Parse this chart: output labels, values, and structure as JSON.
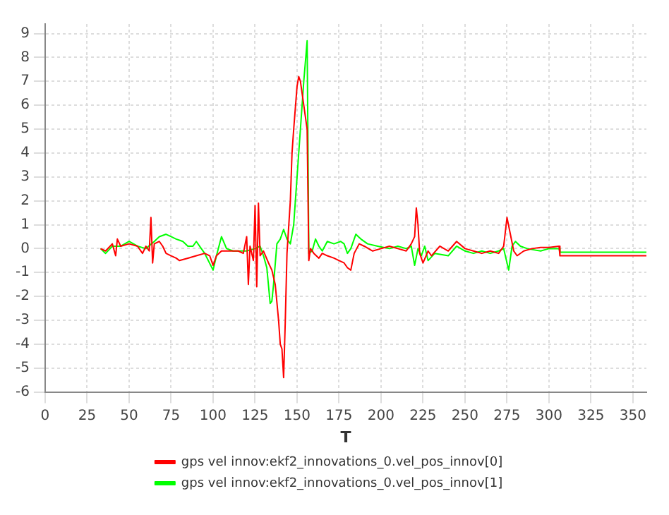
{
  "chart_data": {
    "type": "line",
    "xlabel": "T",
    "xlim": [
      0,
      358
    ],
    "xticks": [
      0,
      25,
      50,
      75,
      100,
      125,
      150,
      175,
      200,
      225,
      250,
      275,
      300,
      325,
      350
    ],
    "ylim": [
      -6,
      9.4
    ],
    "yticks": [
      -6,
      -5,
      -4,
      -3,
      -2,
      -1,
      0,
      1,
      2,
      3,
      4,
      5,
      6,
      7,
      8,
      9
    ],
    "grid": true,
    "legend": "bottom",
    "marker": "none",
    "line_style": "solid",
    "series": [
      {
        "name": "gps vel innov:ekf2_innovations_0.vel_pos_innov[0]",
        "color": "#ff0000",
        "x": [
          33,
          36,
          40,
          42,
          43,
          45,
          50,
          55,
          58,
          60,
          62,
          63,
          64,
          65,
          68,
          70,
          72,
          75,
          78,
          80,
          85,
          90,
          95,
          98,
          100,
          102,
          105,
          110,
          115,
          118,
          120,
          121,
          122,
          124,
          125,
          126,
          127,
          128,
          130,
          133,
          135,
          137,
          139,
          140,
          141,
          142,
          143,
          144,
          146,
          147,
          148,
          150,
          151,
          152,
          154,
          156,
          157,
          158,
          160,
          163,
          165,
          168,
          172,
          175,
          178,
          180,
          182,
          184,
          187,
          190,
          195,
          200,
          205,
          210,
          215,
          218,
          220,
          221,
          222,
          223,
          225,
          228,
          230,
          235,
          240,
          245,
          250,
          255,
          260,
          265,
          270,
          273,
          275,
          277,
          279,
          281,
          285,
          290,
          295,
          300,
          306,
          306.5,
          358
        ],
        "values": [
          0,
          -0.1,
          0.2,
          -0.3,
          0.4,
          0.1,
          0.2,
          0.1,
          -0.2,
          0.1,
          -0.1,
          1.3,
          -0.6,
          0.2,
          0.3,
          0.1,
          -0.2,
          -0.3,
          -0.4,
          -0.5,
          -0.4,
          -0.3,
          -0.2,
          -0.3,
          -0.7,
          -0.3,
          -0.1,
          -0.1,
          -0.1,
          -0.2,
          0.5,
          -1.5,
          0.1,
          -0.5,
          1.8,
          -1.6,
          1.9,
          -0.3,
          -0.1,
          -0.6,
          -0.9,
          -1.5,
          -3.0,
          -4.0,
          -4.2,
          -5.4,
          -3.0,
          -0.2,
          2.0,
          4.0,
          5.0,
          6.8,
          7.2,
          7.0,
          6.0,
          5.0,
          -0.5,
          0.0,
          -0.2,
          -0.4,
          -0.2,
          -0.3,
          -0.4,
          -0.5,
          -0.6,
          -0.8,
          -0.9,
          -0.2,
          0.2,
          0.1,
          -0.1,
          0,
          0.1,
          0.0,
          -0.1,
          0.2,
          0.5,
          1.7,
          1.0,
          -0.2,
          -0.6,
          -0.1,
          -0.3,
          0.1,
          -0.1,
          0.3,
          0.0,
          -0.1,
          -0.2,
          -0.1,
          -0.2,
          0.1,
          1.3,
          0.6,
          -0.1,
          -0.3,
          -0.1,
          0.0,
          0.05,
          0.05,
          0.1,
          -0.3,
          -0.3
        ]
      },
      {
        "name": "gps vel innov:ekf2_innovations_0.vel_pos_innov[1]",
        "color": "#00ff00",
        "x": [
          33,
          36,
          40,
          45,
          50,
          55,
          60,
          65,
          68,
          72,
          75,
          78,
          82,
          85,
          88,
          90,
          95,
          100,
          102,
          105,
          108,
          112,
          115,
          120,
          125,
          128,
          130,
          132,
          134,
          135,
          136,
          138,
          140,
          142,
          144,
          146,
          148,
          150,
          152,
          154,
          156,
          157,
          159,
          161,
          163,
          165,
          168,
          172,
          176,
          178,
          180,
          182,
          185,
          188,
          192,
          198,
          205,
          210,
          215,
          218,
          220,
          222,
          224,
          226,
          228,
          232,
          240,
          245,
          250,
          255,
          260,
          265,
          270,
          273,
          276,
          278,
          280,
          283,
          287,
          295,
          300,
          306,
          306.5,
          358
        ],
        "values": [
          0,
          -0.2,
          0.1,
          0.1,
          0.3,
          0.1,
          0,
          0.3,
          0.5,
          0.6,
          0.5,
          0.4,
          0.3,
          0.1,
          0.1,
          0.3,
          -0.2,
          -0.9,
          -0.3,
          0.5,
          0.0,
          -0.1,
          -0.1,
          -0.1,
          0.0,
          0.1,
          -0.3,
          -0.8,
          -2.3,
          -2.2,
          -1.5,
          0.2,
          0.4,
          0.8,
          0.4,
          0.2,
          1.0,
          3.0,
          5.0,
          7.0,
          8.7,
          -0.2,
          -0.1,
          0.4,
          0.1,
          -0.1,
          0.3,
          0.2,
          0.3,
          0.2,
          -0.2,
          0.0,
          0.6,
          0.4,
          0.2,
          0.1,
          0.0,
          0.1,
          0.0,
          0.1,
          -0.7,
          0.0,
          -0.3,
          0.1,
          -0.5,
          -0.2,
          -0.3,
          0.1,
          -0.1,
          -0.2,
          -0.1,
          -0.2,
          -0.1,
          0.0,
          -0.9,
          0.1,
          0.3,
          0.1,
          0.0,
          -0.1,
          0.0,
          0.0,
          -0.15,
          -0.15
        ]
      }
    ]
  }
}
